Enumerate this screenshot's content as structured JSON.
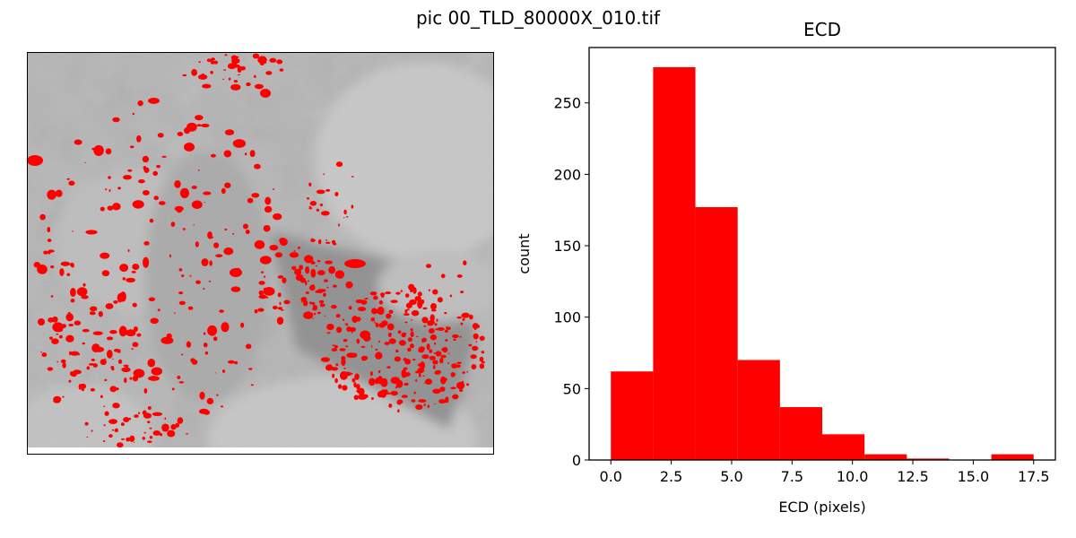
{
  "figure": {
    "title": "pic 00_TLD_80000X_010.tif"
  },
  "micrograph": {
    "overlay_color": "#ff0000",
    "background_gray": "#b4b4b4"
  },
  "chart_data": {
    "type": "bar",
    "title": "ECD",
    "xlabel": "ECD (pixels)",
    "ylabel": "count",
    "bin_edges": [
      0.0,
      1.75,
      3.5,
      5.25,
      7.0,
      8.75,
      10.5,
      12.25,
      14.0,
      15.75,
      17.5
    ],
    "values": [
      62,
      275,
      177,
      70,
      37,
      18,
      4,
      1,
      0,
      4
    ],
    "xlim": [
      -0.9,
      18.4
    ],
    "ylim": [
      0,
      288.75
    ],
    "xticks": [
      "0.0",
      "2.5",
      "5.0",
      "7.5",
      "10.0",
      "12.5",
      "15.0",
      "17.5"
    ],
    "yticks": [
      "0",
      "50",
      "100",
      "150",
      "200",
      "250"
    ],
    "color": "#ff0000",
    "grid": false,
    "legend": "none"
  }
}
